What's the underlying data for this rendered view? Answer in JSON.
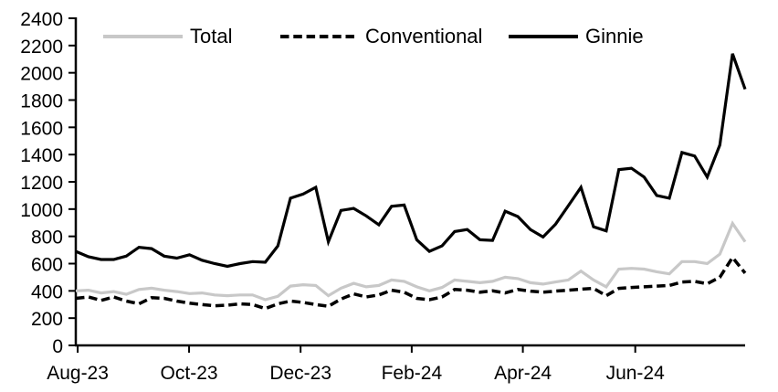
{
  "chart_data": {
    "type": "line",
    "title": "",
    "xlabel": "",
    "ylabel": "",
    "ylim": [
      0,
      2400
    ],
    "y_tick_step": 200,
    "y_ticks": [
      0,
      200,
      400,
      600,
      800,
      1000,
      1200,
      1400,
      1600,
      1800,
      2000,
      2200,
      2400
    ],
    "x_ticks": [
      {
        "label": "Aug-23",
        "week": 0.15
      },
      {
        "label": "Oct-23",
        "week": 8.97
      },
      {
        "label": "Dec-23",
        "week": 17.8
      },
      {
        "label": "Feb-24",
        "week": 26.6
      },
      {
        "label": "Apr-24",
        "week": 35.4
      },
      {
        "label": "Jun-24",
        "week": 44.3
      }
    ],
    "grid": false,
    "legend_position": "top",
    "axis_color": "#000000",
    "background_color": "#ffffff",
    "series": [
      {
        "name": "Total",
        "color": "#c8c8c8",
        "style": "solid",
        "values": [
          400,
          405,
          385,
          395,
          375,
          410,
          420,
          405,
          395,
          380,
          385,
          370,
          365,
          370,
          370,
          335,
          360,
          435,
          445,
          440,
          365,
          420,
          455,
          430,
          440,
          480,
          470,
          430,
          400,
          425,
          480,
          470,
          460,
          470,
          500,
          490,
          460,
          450,
          465,
          480,
          545,
          480,
          430,
          560,
          565,
          560,
          540,
          525,
          615,
          615,
          600,
          670,
          895,
          760
        ]
      },
      {
        "name": "Conventional",
        "color": "#000000",
        "style": "dashed",
        "values": [
          345,
          355,
          330,
          355,
          325,
          305,
          350,
          345,
          325,
          310,
          300,
          290,
          295,
          305,
          300,
          270,
          305,
          325,
          315,
          300,
          287,
          340,
          378,
          355,
          370,
          405,
          390,
          345,
          335,
          355,
          410,
          405,
          390,
          400,
          385,
          410,
          398,
          390,
          398,
          405,
          412,
          418,
          365,
          418,
          425,
          430,
          435,
          440,
          465,
          470,
          452,
          500,
          645,
          530
        ]
      },
      {
        "name": "Ginnie",
        "color": "#000000",
        "style": "solid",
        "values": [
          690,
          650,
          630,
          630,
          655,
          720,
          710,
          655,
          640,
          665,
          625,
          600,
          580,
          600,
          615,
          610,
          730,
          1080,
          1110,
          1160,
          760,
          990,
          1005,
          950,
          885,
          1020,
          1030,
          775,
          690,
          730,
          835,
          850,
          775,
          770,
          985,
          945,
          850,
          795,
          890,
          1025,
          1160,
          870,
          840,
          1290,
          1300,
          1235,
          1100,
          1080,
          1415,
          1390,
          1235,
          1470,
          2140,
          1880
        ]
      }
    ]
  }
}
